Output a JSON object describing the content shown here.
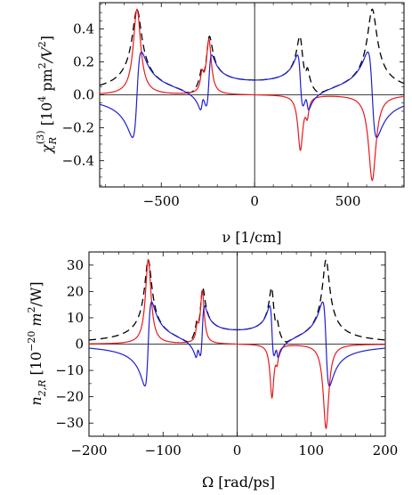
{
  "chart_data": [
    {
      "type": "line",
      "xlabel_parts": {
        "main": "ν [1/cm]"
      },
      "ylabel_parts": {
        "sym": "χ",
        "sub": "R",
        "sup": "(3)",
        "unit": " [10",
        "unit_sup": "4",
        "unit2": " pm",
        "unit2_sup": "2",
        "unit3": "/V",
        "unit3_sup": "2",
        "unit4": "]"
      },
      "xlim": [
        -830,
        800
      ],
      "ylim": [
        -0.56,
        0.56
      ],
      "xticks": [
        -500,
        0,
        500
      ],
      "xtick_labels": [
        "−500",
        "0",
        "500"
      ],
      "yticks": [
        -0.4,
        -0.2,
        0.0,
        0.2,
        0.4
      ],
      "ytick_labels": [
        "−0.4",
        "−0.2",
        "0.0",
        "0.2",
        "0.4"
      ],
      "grid": false,
      "legend": "none",
      "resonances": [
        {
          "center": 630,
          "amplitude": 0.52,
          "width": 24
        },
        {
          "center": 245,
          "amplitude": 0.33,
          "width": 16
        },
        {
          "center": 282,
          "amplitude": 0.1,
          "width": 10
        }
      ],
      "series": [
        {
          "role": "magnitude",
          "color": "#000000",
          "dash": "8,5",
          "x_range": [
            -830,
            800
          ]
        },
        {
          "role": "imaginary",
          "color": "#e8191d",
          "dash": "",
          "x_range": [
            -830,
            800
          ]
        },
        {
          "role": "real",
          "color": "#1f1fd0",
          "dash": "",
          "x_range": [
            -830,
            800
          ]
        }
      ],
      "dashed_peak_values": [
        {
          "x": -630,
          "y": 0.52
        },
        {
          "x": -265,
          "y": 0.39
        },
        {
          "x": 245,
          "y": 0.39
        },
        {
          "x": 630,
          "y": 0.52
        }
      ]
    },
    {
      "type": "line",
      "xlabel_parts": {
        "main": "Ω [rad/ps]"
      },
      "ylabel_parts": {
        "sym": "n",
        "sub": "2,R",
        "unit": " [10",
        "unit_sup": "−20",
        "unit2": " m",
        "unit2_sup": "2",
        "unit3": "/W]"
      },
      "xlim": [
        -200,
        200
      ],
      "ylim": [
        -35,
        35
      ],
      "xticks": [
        -200,
        -100,
        0,
        100,
        200
      ],
      "xtick_labels": [
        "−200",
        "−100",
        "0",
        "100",
        "200"
      ],
      "yticks": [
        -30,
        -20,
        -10,
        0,
        10,
        20,
        30
      ],
      "ytick_labels": [
        "−30",
        "−20",
        "−10",
        "0",
        "10",
        "20",
        "30"
      ],
      "grid": false,
      "legend": "none",
      "resonances": [
        {
          "center": 120,
          "amplitude": 32,
          "width": 4.6
        },
        {
          "center": 47,
          "amplitude": 20,
          "width": 3.1
        },
        {
          "center": 54,
          "amplitude": 5,
          "width": 1.9
        }
      ],
      "series": [
        {
          "role": "magnitude",
          "color": "#000000",
          "dash": "8,5",
          "x_range": [
            -200,
            200
          ]
        },
        {
          "role": "imaginary",
          "color": "#e8191d",
          "dash": "",
          "x_range": [
            -200,
            200
          ]
        },
        {
          "role": "real",
          "color": "#1f1fd0",
          "dash": "",
          "x_range": [
            -200,
            200
          ]
        }
      ],
      "dashed_peak_values": [
        {
          "x": -120,
          "y": 32
        },
        {
          "x": -48,
          "y": 24
        },
        {
          "x": 48,
          "y": 25
        },
        {
          "x": 120,
          "y": 32
        }
      ]
    }
  ]
}
